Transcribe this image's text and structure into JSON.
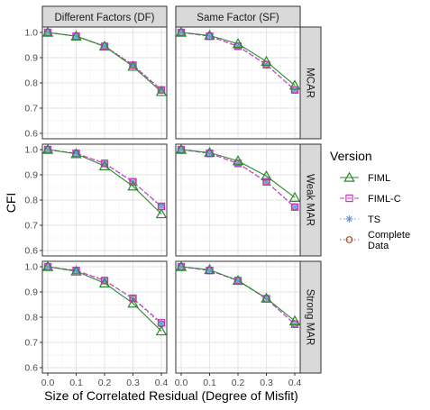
{
  "chart_data": {
    "type": "line",
    "xlabel": "Size of Correlated Residual (Degree of Misfit)",
    "ylabel": "CFI",
    "x": [
      0.0,
      0.1,
      0.2,
      0.3,
      0.4
    ],
    "x_tick_labels": [
      "0.0",
      "0.1",
      "0.2",
      "0.3",
      "0.4"
    ],
    "y_tick_labels": [
      "0.6",
      "0.7",
      "0.8",
      "0.9",
      "1.0"
    ],
    "xlim": [
      0.0,
      0.4
    ],
    "ylim": [
      0.6,
      1.0
    ],
    "grid": true,
    "legend": {
      "title": "Version",
      "position": "right",
      "entries": [
        {
          "label": "FIML",
          "lines": [
            "FIML"
          ]
        },
        {
          "label": "FIML-C",
          "lines": [
            "FIML-C"
          ]
        },
        {
          "label": "TS",
          "lines": [
            "TS"
          ]
        },
        {
          "label": "Complete Data",
          "lines": [
            "Complete",
            "Data"
          ]
        }
      ]
    },
    "facet_columns": [
      "Different Factors (DF)",
      "Same Factor (SF)"
    ],
    "facet_rows": [
      "MCAR",
      "Weak MAR",
      "Strong MAR"
    ],
    "series_styles": {
      "FIML": {
        "color": "#2b8a2b",
        "marker": "triangle-open",
        "line": "solid"
      },
      "FIML-C": {
        "color": "#cc33cc",
        "marker": "square-open",
        "line": "dashed"
      },
      "TS": {
        "color": "#6699dd",
        "marker": "asterisk",
        "line": "dotted"
      },
      "Complete Data": {
        "color": "#a0522d",
        "marker": "circle-open",
        "line": "dotted"
      }
    },
    "panels": [
      {
        "row": "MCAR",
        "col": "Different Factors (DF)",
        "series": [
          {
            "name": "FIML",
            "values": [
              1.0,
              0.985,
              0.945,
              0.865,
              0.765
            ]
          },
          {
            "name": "FIML-C",
            "values": [
              1.0,
              0.985,
              0.945,
              0.87,
              0.772
            ]
          },
          {
            "name": "TS",
            "values": [
              1.0,
              0.985,
              0.945,
              0.87,
              0.772
            ]
          },
          {
            "name": "Complete Data",
            "values": [
              1.0,
              0.985,
              0.947,
              0.872,
              0.773
            ]
          }
        ]
      },
      {
        "row": "MCAR",
        "col": "Same Factor (SF)",
        "series": [
          {
            "name": "FIML",
            "values": [
              1.0,
              0.988,
              0.955,
              0.885,
              0.79
            ]
          },
          {
            "name": "FIML-C",
            "values": [
              1.0,
              0.985,
              0.945,
              0.872,
              0.772
            ]
          },
          {
            "name": "TS",
            "values": [
              1.0,
              0.985,
              0.945,
              0.872,
              0.772
            ]
          },
          {
            "name": "Complete Data",
            "values": [
              1.0,
              0.985,
              0.947,
              0.873,
              0.773
            ]
          }
        ]
      },
      {
        "row": "Weak MAR",
        "col": "Different Factors (DF)",
        "series": [
          {
            "name": "FIML",
            "values": [
              1.0,
              0.983,
              0.935,
              0.855,
              0.745
            ]
          },
          {
            "name": "FIML-C",
            "values": [
              1.0,
              0.985,
              0.945,
              0.872,
              0.775
            ]
          },
          {
            "name": "TS",
            "values": [
              1.0,
              0.985,
              0.945,
              0.872,
              0.775
            ]
          },
          {
            "name": "Complete Data",
            "values": [
              1.0,
              0.985,
              0.947,
              0.873,
              0.773
            ]
          }
        ]
      },
      {
        "row": "Weak MAR",
        "col": "Same Factor (SF)",
        "series": [
          {
            "name": "FIML",
            "values": [
              1.0,
              0.988,
              0.955,
              0.895,
              0.81
            ]
          },
          {
            "name": "FIML-C",
            "values": [
              1.0,
              0.985,
              0.945,
              0.872,
              0.772
            ]
          },
          {
            "name": "TS",
            "values": [
              1.0,
              0.985,
              0.945,
              0.872,
              0.772
            ]
          },
          {
            "name": "Complete Data",
            "values": [
              1.0,
              0.985,
              0.947,
              0.873,
              0.773
            ]
          }
        ]
      },
      {
        "row": "Strong MAR",
        "col": "Different Factors (DF)",
        "series": [
          {
            "name": "FIML",
            "values": [
              1.0,
              0.982,
              0.935,
              0.855,
              0.745
            ]
          },
          {
            "name": "FIML-C",
            "values": [
              1.0,
              0.985,
              0.945,
              0.875,
              0.778
            ]
          },
          {
            "name": "TS",
            "values": [
              1.0,
              0.985,
              0.945,
              0.873,
              0.775
            ]
          },
          {
            "name": "Complete Data",
            "values": [
              1.0,
              0.985,
              0.947,
              0.873,
              0.773
            ]
          }
        ]
      },
      {
        "row": "Strong MAR",
        "col": "Same Factor (SF)",
        "series": [
          {
            "name": "FIML",
            "values": [
              1.0,
              0.988,
              0.945,
              0.875,
              0.785
            ]
          },
          {
            "name": "FIML-C",
            "values": [
              1.0,
              0.985,
              0.945,
              0.873,
              0.772
            ]
          },
          {
            "name": "TS",
            "values": [
              1.0,
              0.985,
              0.945,
              0.873,
              0.772
            ]
          },
          {
            "name": "Complete Data",
            "values": [
              1.0,
              0.985,
              0.947,
              0.873,
              0.773
            ]
          }
        ]
      }
    ]
  }
}
